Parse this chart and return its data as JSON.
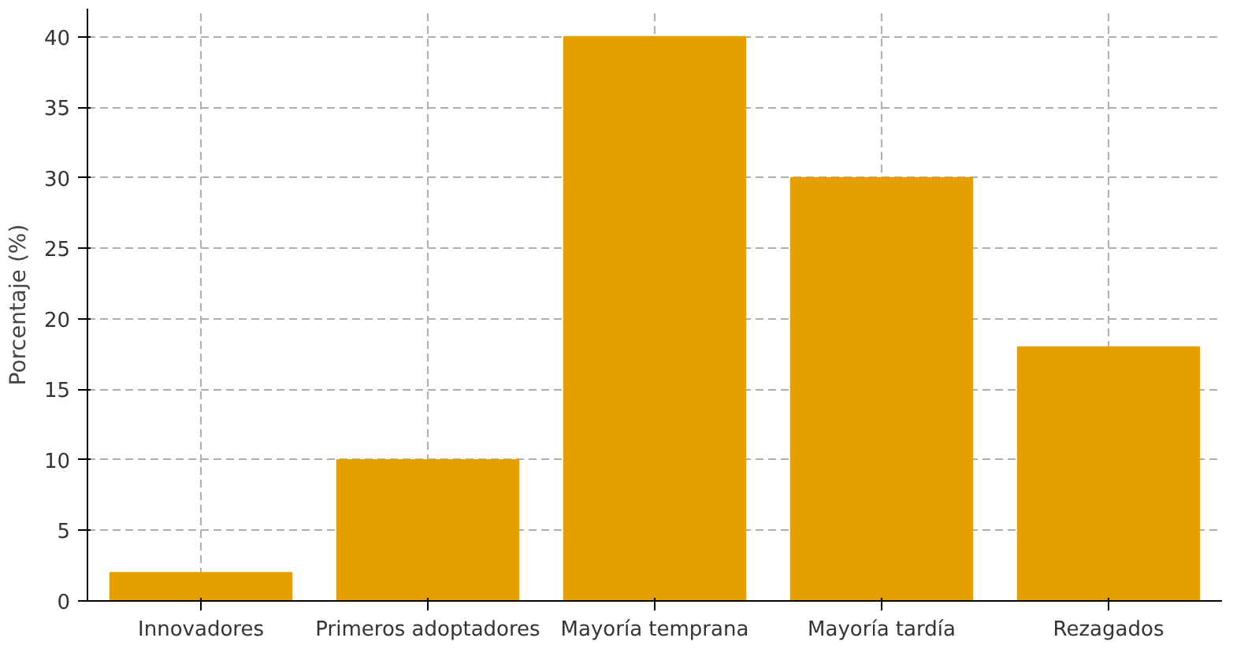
{
  "chart_data": {
    "type": "bar",
    "ylabel": "Porcentaje (%)",
    "categories": [
      "Innovadores",
      "Primeros adoptadores",
      "Mayoría temprana",
      "Mayoría tardía",
      "Rezagados"
    ],
    "values": [
      2,
      10,
      40,
      30,
      18
    ],
    "color": "#e69f00",
    "ylim": [
      0,
      42
    ],
    "yticks": [
      0,
      5,
      10,
      15,
      20,
      25,
      30,
      35,
      40
    ],
    "grid": true
  }
}
